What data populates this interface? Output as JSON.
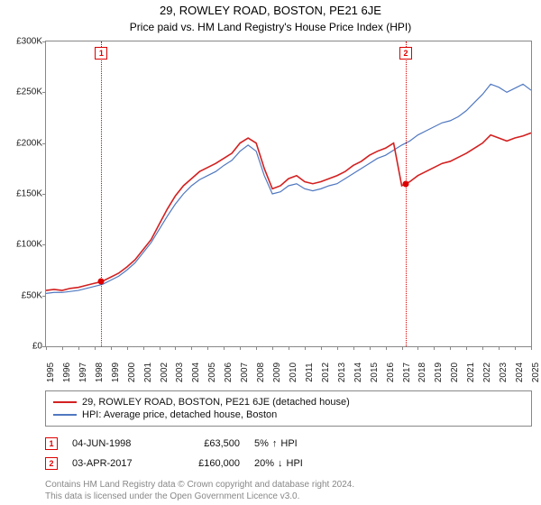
{
  "title": "29, ROWLEY ROAD, BOSTON, PE21 6JE",
  "subtitle": "Price paid vs. HM Land Registry's House Price Index (HPI)",
  "chart": {
    "type": "line",
    "background_color": "#ffffff",
    "border_color": "#888888",
    "ylim": [
      0,
      300000
    ],
    "ytick_step": 50000,
    "y_tick_labels": [
      "£0",
      "£50K",
      "£100K",
      "£150K",
      "£200K",
      "£250K",
      "£300K"
    ],
    "xlim": [
      1995,
      2025
    ],
    "x_ticks": [
      1995,
      1996,
      1997,
      1998,
      1999,
      2000,
      2001,
      2002,
      2003,
      2004,
      2005,
      2006,
      2007,
      2008,
      2009,
      2010,
      2011,
      2012,
      2013,
      2014,
      2015,
      2016,
      2017,
      2018,
      2019,
      2020,
      2021,
      2022,
      2023,
      2024,
      2025
    ],
    "series": [
      {
        "name": "red",
        "label": "29, ROWLEY ROAD, BOSTON, PE21 6JE (detached house)",
        "color": "#d32020",
        "line_width": 1.6,
        "points": [
          [
            1995,
            55000
          ],
          [
            1995.5,
            56000
          ],
          [
            1996,
            55000
          ],
          [
            1996.5,
            57000
          ],
          [
            1997,
            58000
          ],
          [
            1997.5,
            60000
          ],
          [
            1998,
            62000
          ],
          [
            1998.42,
            63500
          ],
          [
            1999,
            68000
          ],
          [
            1999.5,
            72000
          ],
          [
            2000,
            78000
          ],
          [
            2000.5,
            85000
          ],
          [
            2001,
            95000
          ],
          [
            2001.5,
            105000
          ],
          [
            2002,
            120000
          ],
          [
            2002.5,
            135000
          ],
          [
            2003,
            148000
          ],
          [
            2003.5,
            158000
          ],
          [
            2004,
            165000
          ],
          [
            2004.5,
            172000
          ],
          [
            2005,
            176000
          ],
          [
            2005.5,
            180000
          ],
          [
            2006,
            185000
          ],
          [
            2006.5,
            190000
          ],
          [
            2007,
            200000
          ],
          [
            2007.5,
            205000
          ],
          [
            2008,
            200000
          ],
          [
            2008.5,
            175000
          ],
          [
            2009,
            155000
          ],
          [
            2009.5,
            158000
          ],
          [
            2010,
            165000
          ],
          [
            2010.5,
            168000
          ],
          [
            2011,
            162000
          ],
          [
            2011.5,
            160000
          ],
          [
            2012,
            162000
          ],
          [
            2012.5,
            165000
          ],
          [
            2013,
            168000
          ],
          [
            2013.5,
            172000
          ],
          [
            2014,
            178000
          ],
          [
            2014.5,
            182000
          ],
          [
            2015,
            188000
          ],
          [
            2015.5,
            192000
          ],
          [
            2016,
            195000
          ],
          [
            2016.5,
            200000
          ],
          [
            2017,
            158000
          ],
          [
            2017.25,
            160000
          ],
          [
            2017.5,
            162000
          ],
          [
            2018,
            168000
          ],
          [
            2018.5,
            172000
          ],
          [
            2019,
            176000
          ],
          [
            2019.5,
            180000
          ],
          [
            2020,
            182000
          ],
          [
            2020.5,
            186000
          ],
          [
            2021,
            190000
          ],
          [
            2021.5,
            195000
          ],
          [
            2022,
            200000
          ],
          [
            2022.5,
            208000
          ],
          [
            2023,
            205000
          ],
          [
            2023.5,
            202000
          ],
          [
            2024,
            205000
          ],
          [
            2024.5,
            207000
          ],
          [
            2025,
            210000
          ]
        ]
      },
      {
        "name": "blue",
        "label": "HPI: Average price, detached house, Boston",
        "color": "#5078c0",
        "line_width": 1.2,
        "points": [
          [
            1995,
            52000
          ],
          [
            1995.5,
            53000
          ],
          [
            1996,
            53000
          ],
          [
            1996.5,
            54000
          ],
          [
            1997,
            55000
          ],
          [
            1997.5,
            57000
          ],
          [
            1998,
            59000
          ],
          [
            1998.5,
            61000
          ],
          [
            1999,
            65000
          ],
          [
            1999.5,
            69000
          ],
          [
            2000,
            75000
          ],
          [
            2000.5,
            82000
          ],
          [
            2001,
            92000
          ],
          [
            2001.5,
            102000
          ],
          [
            2002,
            115000
          ],
          [
            2002.5,
            128000
          ],
          [
            2003,
            140000
          ],
          [
            2003.5,
            150000
          ],
          [
            2004,
            158000
          ],
          [
            2004.5,
            164000
          ],
          [
            2005,
            168000
          ],
          [
            2005.5,
            172000
          ],
          [
            2006,
            178000
          ],
          [
            2006.5,
            183000
          ],
          [
            2007,
            192000
          ],
          [
            2007.5,
            198000
          ],
          [
            2008,
            192000
          ],
          [
            2008.5,
            168000
          ],
          [
            2009,
            150000
          ],
          [
            2009.5,
            152000
          ],
          [
            2010,
            158000
          ],
          [
            2010.5,
            160000
          ],
          [
            2011,
            155000
          ],
          [
            2011.5,
            153000
          ],
          [
            2012,
            155000
          ],
          [
            2012.5,
            158000
          ],
          [
            2013,
            160000
          ],
          [
            2013.5,
            165000
          ],
          [
            2014,
            170000
          ],
          [
            2014.5,
            175000
          ],
          [
            2015,
            180000
          ],
          [
            2015.5,
            185000
          ],
          [
            2016,
            188000
          ],
          [
            2016.5,
            193000
          ],
          [
            2017,
            198000
          ],
          [
            2017.5,
            202000
          ],
          [
            2018,
            208000
          ],
          [
            2018.5,
            212000
          ],
          [
            2019,
            216000
          ],
          [
            2019.5,
            220000
          ],
          [
            2020,
            222000
          ],
          [
            2020.5,
            226000
          ],
          [
            2021,
            232000
          ],
          [
            2021.5,
            240000
          ],
          [
            2022,
            248000
          ],
          [
            2022.5,
            258000
          ],
          [
            2023,
            255000
          ],
          [
            2023.5,
            250000
          ],
          [
            2024,
            254000
          ],
          [
            2024.5,
            258000
          ],
          [
            2025,
            252000
          ]
        ]
      }
    ],
    "markers": [
      {
        "id": "1",
        "x": 1998.42,
        "y": 63500
      },
      {
        "id": "2",
        "x": 2017.25,
        "y": 160000
      }
    ],
    "marker_line_color": "#d00000",
    "marker_box": {
      "border_color": "#d00000",
      "text_color": "#d00000",
      "size": 14
    }
  },
  "legend": {
    "items": [
      {
        "color": "#d32020",
        "label": "29, ROWLEY ROAD, BOSTON, PE21 6JE (detached house)"
      },
      {
        "color": "#5078c0",
        "label": "HPI: Average price, detached house, Boston"
      }
    ]
  },
  "transactions": [
    {
      "id": "1",
      "date": "04-JUN-1998",
      "price": "£63,500",
      "pct": "5%",
      "arrow": "↑",
      "suffix": "HPI"
    },
    {
      "id": "2",
      "date": "03-APR-2017",
      "price": "£160,000",
      "pct": "20%",
      "arrow": "↓",
      "suffix": "HPI"
    }
  ],
  "footer": {
    "line1": "Contains HM Land Registry data © Crown copyright and database right 2024.",
    "line2": "This data is licensed under the Open Government Licence v3.0."
  }
}
